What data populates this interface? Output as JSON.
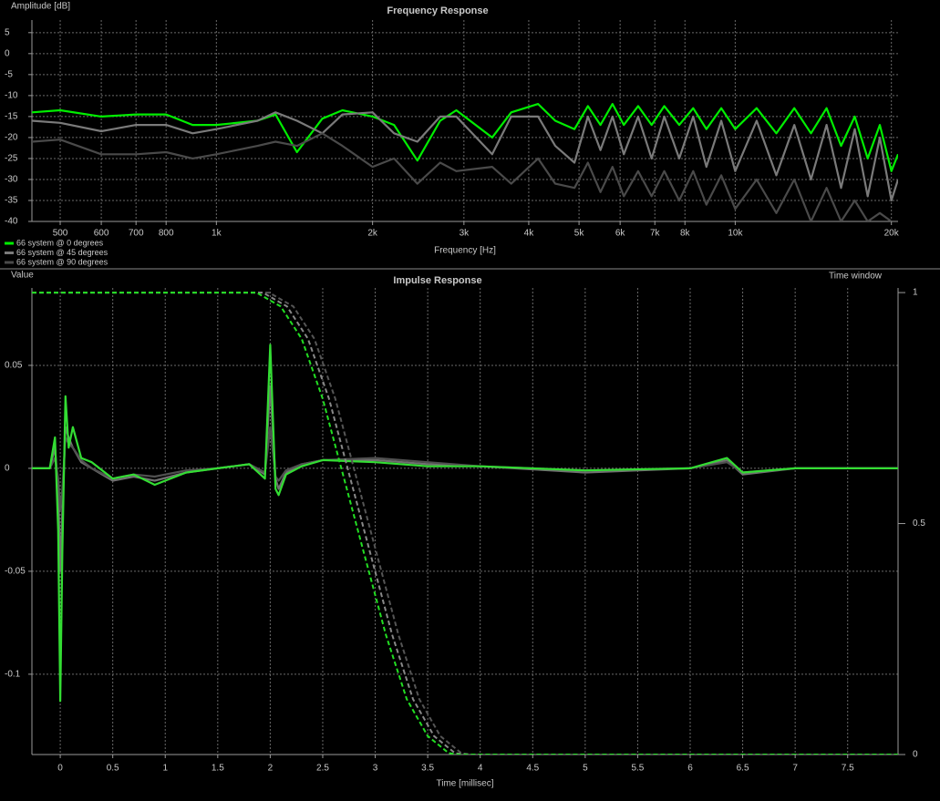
{
  "chart_data": [
    {
      "type": "line",
      "title": "Frequency Response",
      "y_label": "Amplitude [dB]",
      "x_label": "Frequency [Hz]",
      "xscale": "log",
      "grid": true,
      "legend": "bottom-left",
      "xlim": [
        441,
        20600
      ],
      "ylim": [
        -40,
        8
      ],
      "xticks": [
        500,
        600,
        700,
        800,
        {
          "value": 1000,
          "label": "1k"
        },
        {
          "value": 2000,
          "label": "2k"
        },
        {
          "value": 3000,
          "label": "3k"
        },
        {
          "value": 4000,
          "label": "4k"
        },
        {
          "value": 5000,
          "label": "5k"
        },
        {
          "value": 6000,
          "label": "6k"
        },
        {
          "value": 7000,
          "label": "7k"
        },
        {
          "value": 8000,
          "label": "8k"
        },
        {
          "value": 10000,
          "label": "10k"
        },
        {
          "value": 20000,
          "label": "20k"
        }
      ],
      "yticks": [
        5,
        0,
        -5,
        -10,
        -15,
        -20,
        -25,
        -30,
        -35,
        -40
      ],
      "x": [
        441,
        500,
        600,
        700,
        800,
        900,
        1000,
        1200,
        1300,
        1430,
        1600,
        1750,
        2000,
        2200,
        2440,
        2700,
        2900,
        3400,
        3700,
        4170,
        4500,
        4900,
        5200,
        5500,
        5800,
        6100,
        6500,
        6900,
        7300,
        7800,
        8300,
        8800,
        9400,
        10000,
        11000,
        12000,
        13000,
        14000,
        15000,
        16000,
        17000,
        18000,
        19000,
        20000,
        20600
      ],
      "series": [
        {
          "name": "66 system @ 0 degrees",
          "color": "#00ee00",
          "values": [
            -14,
            -13.5,
            -15,
            -14.5,
            -14.5,
            -17,
            -17,
            -16,
            -14.5,
            -23.5,
            -15.5,
            -13.5,
            -15,
            -17,
            -25.5,
            -16,
            -13.5,
            -20,
            -14,
            -12,
            -16,
            -18,
            -12.5,
            -17,
            -12,
            -17,
            -12.5,
            -17,
            -12.5,
            -17,
            -13,
            -18,
            -13,
            -18,
            -13,
            -19,
            -13,
            -19,
            -13,
            -22,
            -15,
            -25,
            -17,
            -28,
            -24
          ]
        },
        {
          "name": "66 system @ 45 degrees",
          "color": "#7a7a7a",
          "values": [
            -16,
            -16.5,
            -18.5,
            -17,
            -17,
            -19,
            -18,
            -16,
            -14,
            -16,
            -19,
            -14.5,
            -14,
            -19,
            -21,
            -15,
            -15,
            -24,
            -15,
            -15,
            -22,
            -26,
            -15,
            -23,
            -15,
            -24,
            -15,
            -25,
            -15,
            -25,
            -15,
            -27,
            -16,
            -28,
            -16,
            -29,
            -17,
            -30,
            -17,
            -32,
            -18,
            -34,
            -20,
            -35,
            -30
          ]
        },
        {
          "name": "66 system @ 90 degrees",
          "color": "#4a4a4a",
          "values": [
            -21,
            -20.5,
            -24,
            -24,
            -23.5,
            -25,
            -24,
            -22,
            -21,
            -22,
            -19,
            -22,
            -27,
            -25,
            -31,
            -26,
            -28,
            -27,
            -31,
            -25,
            -31,
            -32,
            -26,
            -33,
            -27,
            -34,
            -28,
            -34,
            -28,
            -35,
            -28,
            -36,
            -29,
            -37,
            -30,
            -38,
            -30,
            -40,
            -32,
            -40,
            -35,
            -40,
            -38,
            -40,
            -40
          ]
        }
      ]
    },
    {
      "type": "line",
      "title": "Impulse Response",
      "y_label": "Value",
      "x_label": "Time [millisec]",
      "y2_label": "Time window",
      "grid": true,
      "xlim": [
        -0.27,
        7.98
      ],
      "ylim": [
        -0.139,
        0.0876
      ],
      "y2lim": [
        0,
        1.01
      ],
      "xticks": [
        0,
        0.5,
        1,
        1.5,
        2,
        2.5,
        3,
        3.5,
        4,
        4.5,
        5,
        5.5,
        6,
        6.5,
        7,
        7.5
      ],
      "yticks": [
        0.05,
        0,
        -0.05,
        -0.1
      ],
      "y2ticks": [
        1,
        0.5,
        0
      ],
      "x": [
        -0.27,
        -0.1,
        -0.05,
        -0.02,
        0,
        0.02,
        0.05,
        0.08,
        0.12,
        0.2,
        0.3,
        0.5,
        0.7,
        0.9,
        1.2,
        1.5,
        1.8,
        1.95,
        2.0,
        2.05,
        2.08,
        2.15,
        2.3,
        2.5,
        3,
        3.5,
        4,
        5,
        6,
        6.35,
        6.5,
        7,
        7.98
      ],
      "series": [
        {
          "color": "#707070",
          "values": [
            0,
            0,
            0.01,
            -0.01,
            -0.05,
            -0.02,
            0.02,
            0.015,
            0.01,
            0.003,
            0,
            -0.006,
            -0.004,
            -0.006,
            -0.002,
            0,
            0.002,
            -0.003,
            0.04,
            -0.005,
            -0.01,
            -0.002,
            0.002,
            0.004,
            0.004,
            0.002,
            0.001,
            -0.002,
            0,
            0.004,
            -0.003,
            0,
            0
          ]
        },
        {
          "color": "#505050",
          "values": [
            0,
            0,
            0.005,
            -0.005,
            -0.02,
            -0.01,
            0.015,
            0.012,
            0.01,
            0.004,
            0,
            -0.005,
            -0.003,
            -0.004,
            -0.001,
            0,
            0.002,
            -0.002,
            0.02,
            -0.004,
            -0.006,
            -0.001,
            0.002,
            0.004,
            0.005,
            0.003,
            0.001,
            -0.001,
            0,
            0.003,
            -0.002,
            0,
            0
          ]
        },
        {
          "color": "#33dd33",
          "values": [
            0,
            0,
            0.015,
            -0.03,
            -0.113,
            -0.04,
            0.035,
            0.01,
            0.02,
            0.005,
            0.003,
            -0.005,
            -0.003,
            -0.008,
            -0.002,
            0,
            0.002,
            -0.005,
            0.06,
            -0.01,
            -0.013,
            -0.003,
            0.001,
            0.004,
            0.003,
            0.001,
            0.001,
            -0.001,
            0,
            0.005,
            -0.002,
            0,
            0
          ]
        },
        {
          "color": "#555555",
          "axis": "y2",
          "dashed": true,
          "x": [
            -0.27,
            1.99,
            2.22,
            2.42,
            2.62,
            2.82,
            3.02,
            3.22,
            3.42,
            3.62,
            3.82,
            3.92,
            7.98
          ],
          "values": [
            1,
            1,
            0.97,
            0.9,
            0.77,
            0.6,
            0.43,
            0.26,
            0.12,
            0.04,
            0.003,
            0,
            0
          ]
        },
        {
          "color": "#888888",
          "axis": "y2",
          "dashed": true,
          "x": [
            -0.27,
            1.93,
            2.16,
            2.36,
            2.56,
            2.76,
            2.96,
            3.16,
            3.36,
            3.56,
            3.76,
            3.86,
            7.98
          ],
          "values": [
            1,
            1,
            0.97,
            0.9,
            0.77,
            0.6,
            0.43,
            0.26,
            0.12,
            0.04,
            0.003,
            0,
            0
          ]
        },
        {
          "color": "#22dd22",
          "axis": "y2",
          "dashed": true,
          "x": [
            -0.27,
            1.87,
            2.1,
            2.3,
            2.5,
            2.7,
            2.9,
            3.1,
            3.3,
            3.5,
            3.7,
            3.8,
            7.98
          ],
          "values": [
            1,
            1,
            0.97,
            0.9,
            0.77,
            0.6,
            0.43,
            0.26,
            0.12,
            0.04,
            0.003,
            0,
            0
          ]
        }
      ]
    }
  ]
}
